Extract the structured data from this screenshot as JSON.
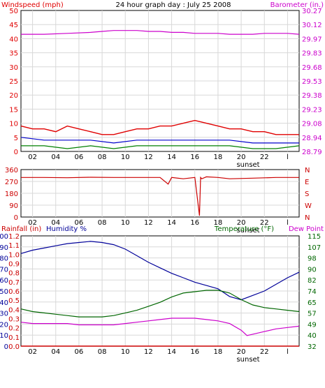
{
  "title": "24 hour graph day : July 25 2008",
  "colors": {
    "windspeed": "#e00000",
    "gust_avg": "#0000cc",
    "wind_low": "#008000",
    "barometer": "#cc00cc",
    "direction": "#cc0000",
    "humidity": "#000099",
    "temperature": "#006600",
    "dew_point": "#cc00cc",
    "rainfall": "#cc0000",
    "grid": "#d8d8d8",
    "frame": "#000000"
  },
  "x_axis": {
    "ticks": [
      "02",
      "04",
      "06",
      "08",
      "10",
      "12",
      "14",
      "16",
      "18",
      "20",
      "22",
      "l"
    ],
    "sunset_label": "sunset"
  },
  "chart_data": [
    {
      "type": "line",
      "name": "wind-barometer",
      "left_axis_label": "Windspeed (mph)",
      "right_axis_label": "Barometer (in.)",
      "left_ticks": [
        "0",
        "5",
        "10",
        "15",
        "20",
        "25",
        "30",
        "35",
        "40",
        "45",
        "50"
      ],
      "right_ticks": [
        "28.79",
        "28.94",
        "29.08",
        "29.23",
        "29.38",
        "29.53",
        "29.68",
        "29.83",
        "29.97",
        "30.12",
        "30.27"
      ],
      "ylim_left": [
        0,
        50
      ],
      "ylim_right": [
        28.79,
        30.27
      ],
      "barometer": {
        "x": [
          0,
          2,
          4,
          6,
          7,
          8,
          9,
          10,
          11,
          12,
          13,
          14,
          15,
          16,
          17,
          18,
          19,
          20,
          21,
          22,
          23,
          24
        ],
        "y": [
          30.02,
          30.02,
          30.03,
          30.04,
          30.05,
          30.06,
          30.06,
          30.06,
          30.05,
          30.05,
          30.04,
          30.04,
          30.03,
          30.03,
          30.03,
          30.02,
          30.02,
          30.02,
          30.03,
          30.03,
          30.03,
          30.02
        ]
      },
      "windspeed": {
        "x": [
          0,
          1,
          2,
          3,
          4,
          5,
          6,
          7,
          8,
          9,
          10,
          11,
          12,
          13,
          14,
          15,
          16,
          17,
          18,
          19,
          20,
          21,
          22,
          23,
          24
        ],
        "y": [
          9,
          8,
          8,
          7,
          9,
          8,
          7,
          6,
          6,
          7,
          8,
          8,
          9,
          9,
          10,
          11,
          10,
          9,
          8,
          8,
          7,
          7,
          6,
          6,
          6
        ]
      },
      "wind_avg": {
        "x": [
          0,
          2,
          4,
          6,
          8,
          10,
          12,
          14,
          16,
          18,
          20,
          22,
          24
        ],
        "y": [
          5,
          4,
          4,
          4,
          3,
          4,
          4,
          4,
          4,
          4,
          3,
          3,
          3
        ]
      },
      "wind_low": {
        "x": [
          0,
          2,
          4,
          6,
          8,
          10,
          12,
          14,
          16,
          18,
          20,
          22,
          24
        ],
        "y": [
          2,
          2,
          1,
          2,
          1,
          2,
          2,
          2,
          2,
          2,
          1,
          1,
          2
        ]
      }
    },
    {
      "type": "line",
      "name": "wind-direction",
      "left_ticks": [
        "0",
        "90",
        "180",
        "270",
        "360"
      ],
      "right_ticks": [
        "N",
        "W",
        "S",
        "E",
        "N"
      ],
      "ylim": [
        0,
        360
      ],
      "direction": {
        "x": [
          0,
          2,
          4,
          6,
          8,
          10,
          12,
          12.7,
          13,
          14,
          15,
          15.4,
          15.5,
          15.6,
          16,
          17,
          18,
          20,
          22,
          24
        ],
        "y": [
          300,
          300,
          298,
          302,
          300,
          300,
          300,
          250,
          300,
          290,
          300,
          10,
          300,
          290,
          305,
          300,
          290,
          295,
          300,
          300
        ]
      }
    },
    {
      "type": "line",
      "name": "humidity-temperature",
      "left_axis_label": "Rainfall (in)",
      "left2_axis_label": "Humidity %",
      "right_axis_label": "Temperature (°F)",
      "right2_axis_label": "Dew Point",
      "rain_ticks": [
        "0.0",
        "0.1",
        "0.2",
        "0.3",
        "0.4",
        "0.5",
        "0.6",
        "0.7",
        "0.8",
        "0.9",
        "1.0",
        "1.1",
        "1.2"
      ],
      "humidity_ticks": [
        "0",
        "10",
        "20",
        "30",
        "40",
        "50",
        "60",
        "70",
        "80",
        "90",
        "100"
      ],
      "temp_ticks": [
        "32",
        "40",
        "49",
        "57",
        "65",
        "74",
        "82",
        "90",
        "98",
        "107",
        "115"
      ],
      "ylim_humidity": [
        0,
        100
      ],
      "ylim_temp": [
        32,
        115
      ],
      "humidity": {
        "x": [
          0,
          1,
          2,
          3,
          4,
          5,
          6,
          7,
          8,
          9,
          10,
          11,
          12,
          13,
          14,
          15,
          16,
          17,
          18,
          19,
          20,
          21,
          22,
          23,
          24
        ],
        "y": [
          84,
          87,
          89,
          91,
          93,
          94,
          95,
          94,
          92,
          88,
          82,
          76,
          71,
          66,
          62,
          58,
          55,
          52,
          45,
          42,
          46,
          50,
          56,
          62,
          67
        ]
      },
      "temperature": {
        "x": [
          0,
          1,
          2,
          3,
          4,
          5,
          6,
          7,
          8,
          9,
          10,
          11,
          12,
          13,
          14,
          15,
          16,
          17,
          18,
          19,
          20,
          21,
          22,
          23,
          24
        ],
        "y": [
          60,
          58,
          57,
          56,
          55,
          54,
          54,
          54,
          55,
          57,
          59,
          62,
          65,
          69,
          72,
          73,
          74,
          74,
          72,
          67,
          63,
          61,
          60,
          59,
          58
        ]
      },
      "dew_point": {
        "x": [
          0,
          1,
          2,
          3,
          4,
          5,
          6,
          7,
          8,
          9,
          10,
          11,
          12,
          13,
          14,
          15,
          16,
          17,
          18,
          19,
          19.5,
          20,
          21,
          22,
          23,
          24
        ],
        "y": [
          50,
          49,
          49,
          49,
          49,
          48,
          48,
          48,
          48,
          49,
          50,
          51,
          52,
          53,
          53,
          53,
          52,
          51,
          49,
          44,
          40,
          41,
          43,
          45,
          46,
          47
        ]
      },
      "rainfall": {
        "x": [
          0,
          24
        ],
        "y": [
          0,
          0
        ]
      }
    }
  ]
}
